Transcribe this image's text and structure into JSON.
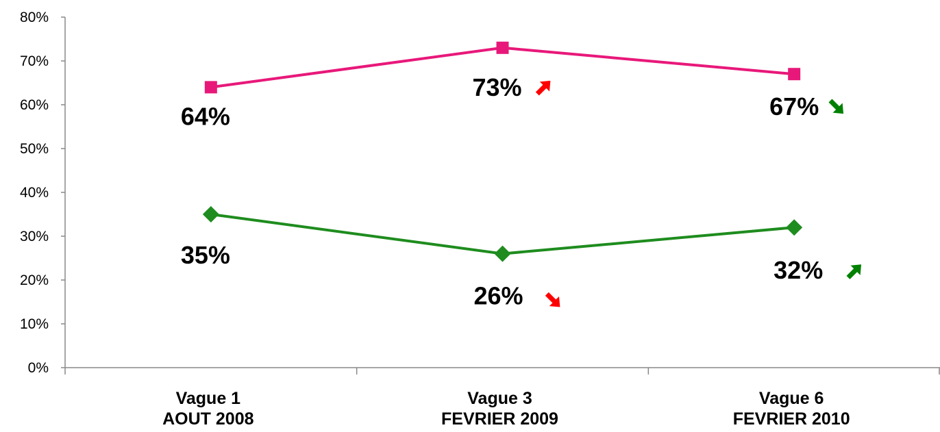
{
  "chart_data": {
    "type": "line",
    "categories": [
      [
        "Vague 1",
        "AOUT 2008"
      ],
      [
        "Vague 3",
        "FEVRIER 2009"
      ],
      [
        "Vague 6",
        "FEVRIER 2010"
      ]
    ],
    "ylim": [
      0,
      80
    ],
    "yticks": [
      "0%",
      "10%",
      "20%",
      "30%",
      "40%",
      "50%",
      "60%",
      "70%",
      "80%"
    ],
    "grid": false,
    "legend": "none",
    "series": [
      {
        "color": "#E8187A",
        "marker": "square",
        "values": [
          64,
          73,
          67
        ],
        "labels": [
          "64%",
          "73%",
          "67%"
        ],
        "trend_arrows": [
          null,
          "up",
          "down"
        ],
        "arrow_colors": [
          null,
          "#FF0000",
          "#008000"
        ]
      },
      {
        "color": "#1E8C1E",
        "marker": "diamond",
        "values": [
          35,
          26,
          32
        ],
        "labels": [
          "35%",
          "26%",
          "32%"
        ],
        "trend_arrows": [
          null,
          "down",
          "up"
        ],
        "arrow_colors": [
          null,
          "#FF0000",
          "#008000"
        ]
      }
    ]
  }
}
